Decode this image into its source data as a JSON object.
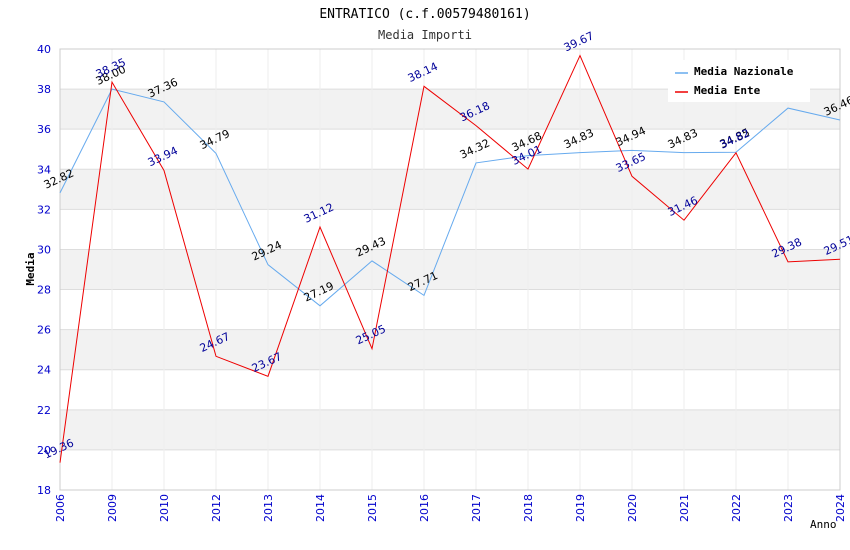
{
  "chart_data": {
    "type": "line",
    "title": "ENTRATICO (c.f.00579480161)",
    "subtitle": "Media Importi",
    "xlabel": "Anno",
    "ylabel": "Media",
    "ylim": [
      18,
      40
    ],
    "y_ticks": [
      "18",
      "20",
      "22",
      "24",
      "26",
      "28",
      "30",
      "32",
      "34",
      "36",
      "38",
      "40"
    ],
    "categories": [
      "2006",
      "2009",
      "2010",
      "2012",
      "2013",
      "2014",
      "2015",
      "2016",
      "2017",
      "2018",
      "2019",
      "2020",
      "2021",
      "2022",
      "2023",
      "2024"
    ],
    "series": [
      {
        "name": "Media Nazionale",
        "color": "#66aaee",
        "label_color": "#000000",
        "values": [
          32.82,
          38.0,
          37.36,
          34.79,
          29.24,
          27.19,
          29.43,
          27.71,
          34.32,
          34.68,
          34.83,
          34.94,
          34.83,
          34.85,
          null,
          36.46
        ],
        "labels": [
          "32.82",
          "38.00",
          "37.36",
          "34.79",
          "29.24",
          "27.19",
          "29.43",
          "27.71",
          "34.32",
          "34.68",
          "34.83",
          "34.94",
          "34.83",
          "34.85",
          "",
          "36.46"
        ],
        "line_values": [
          32.82,
          38.0,
          37.36,
          34.79,
          29.24,
          27.19,
          29.43,
          27.71,
          34.32,
          34.68,
          34.83,
          34.94,
          34.83,
          34.85,
          37.05,
          36.46
        ]
      },
      {
        "name": "Media Ente",
        "color": "#ee0000",
        "label_color": "#000099",
        "values": [
          19.36,
          38.35,
          33.94,
          24.67,
          23.67,
          31.12,
          25.05,
          38.14,
          36.18,
          34.01,
          39.67,
          33.65,
          31.46,
          34.82,
          29.38,
          29.51
        ],
        "labels": [
          "19.36",
          "38.35",
          "33.94",
          "24.67",
          "23.67",
          "31.12",
          "25.05",
          "38.14",
          "36.18",
          "34.01",
          "39.67",
          "33.65",
          "31.46",
          "34.82",
          "29.38",
          "29.51"
        ],
        "line_values": [
          19.36,
          38.35,
          33.94,
          24.67,
          23.67,
          31.12,
          25.05,
          38.14,
          36.18,
          34.01,
          39.67,
          33.65,
          31.46,
          34.82,
          29.38,
          29.51
        ]
      }
    ],
    "legend": {
      "placement": "top-right"
    }
  },
  "colors": {
    "axis_tick_text": "#0000cc",
    "band_fill": "#f2f2f2",
    "grid": "#dddddd",
    "frame": "#cccccc",
    "title_text": "#000000",
    "subtitle_text": "#333333"
  }
}
